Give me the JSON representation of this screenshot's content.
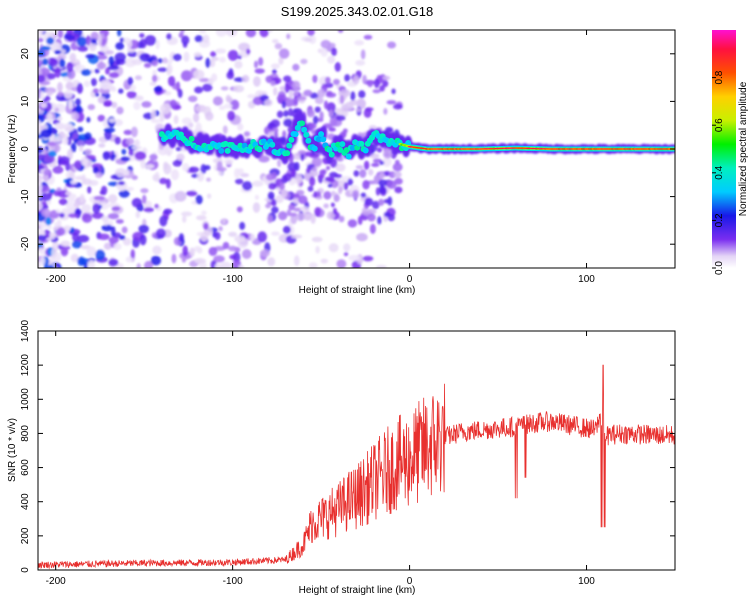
{
  "title": "S199.2025.343.02.01.G18",
  "chart_data": [
    {
      "type": "heatmap",
      "xlabel": "Height of straight line (km)",
      "ylabel": "Frequency (Hz)",
      "xlim": [
        -210,
        150
      ],
      "ylim": [
        -25,
        25
      ],
      "xticks": [
        -200,
        -100,
        0,
        100
      ],
      "yticks": [
        -20,
        -10,
        0,
        10,
        20
      ],
      "colorbar": {
        "label": "Normalized spectral amplitude",
        "range": [
          0,
          1
        ],
        "ticks": [
          "0.0",
          "0.2",
          "0.4",
          "0.6",
          "0.8"
        ]
      },
      "ridge": {
        "x": [
          -140,
          -130,
          -120,
          -110,
          -100,
          -90,
          -80,
          -70,
          -62,
          -55,
          -50,
          -45,
          -40,
          -35,
          -30,
          -25,
          -20,
          -15,
          -10,
          -5,
          0,
          10,
          20,
          40,
          60,
          80,
          100,
          110,
          150
        ],
        "y": [
          3,
          2.5,
          1,
          0.5,
          0.5,
          0.5,
          1,
          -1,
          6,
          0,
          3,
          -1,
          1,
          -1,
          1,
          0,
          3,
          2,
          1,
          1,
          0.5,
          0,
          0,
          0,
          0.2,
          0,
          0,
          0,
          0
        ]
      }
    },
    {
      "type": "line",
      "xlabel": "Height of straight line (km)",
      "ylabel": "SNR (10 * v/v)",
      "xlim": [
        -210,
        150
      ],
      "ylim": [
        0,
        1400
      ],
      "xticks": [
        -200,
        -100,
        0,
        100
      ],
      "yticks": [
        0,
        200,
        400,
        600,
        800,
        1000,
        1200,
        1400
      ],
      "color": "#e8302e",
      "series": [
        {
          "x": [
            -210,
            -150,
            -100,
            -70,
            -60,
            -55,
            -50,
            -45,
            -40,
            -35,
            -30,
            -25,
            -20,
            -15,
            -10,
            -5,
            0,
            10,
            20,
            30,
            40,
            50,
            60,
            70,
            80,
            90,
            100,
            105,
            108,
            110,
            112,
            120,
            130,
            140,
            150
          ],
          "y": [
            30,
            40,
            45,
            60,
            150,
            280,
            300,
            330,
            360,
            400,
            430,
            470,
            520,
            560,
            600,
            630,
            650,
            720,
            780,
            810,
            820,
            830,
            840,
            860,
            870,
            850,
            830,
            820,
            900,
            800,
            790,
            800,
            795,
            790,
            790
          ]
        }
      ]
    }
  ]
}
